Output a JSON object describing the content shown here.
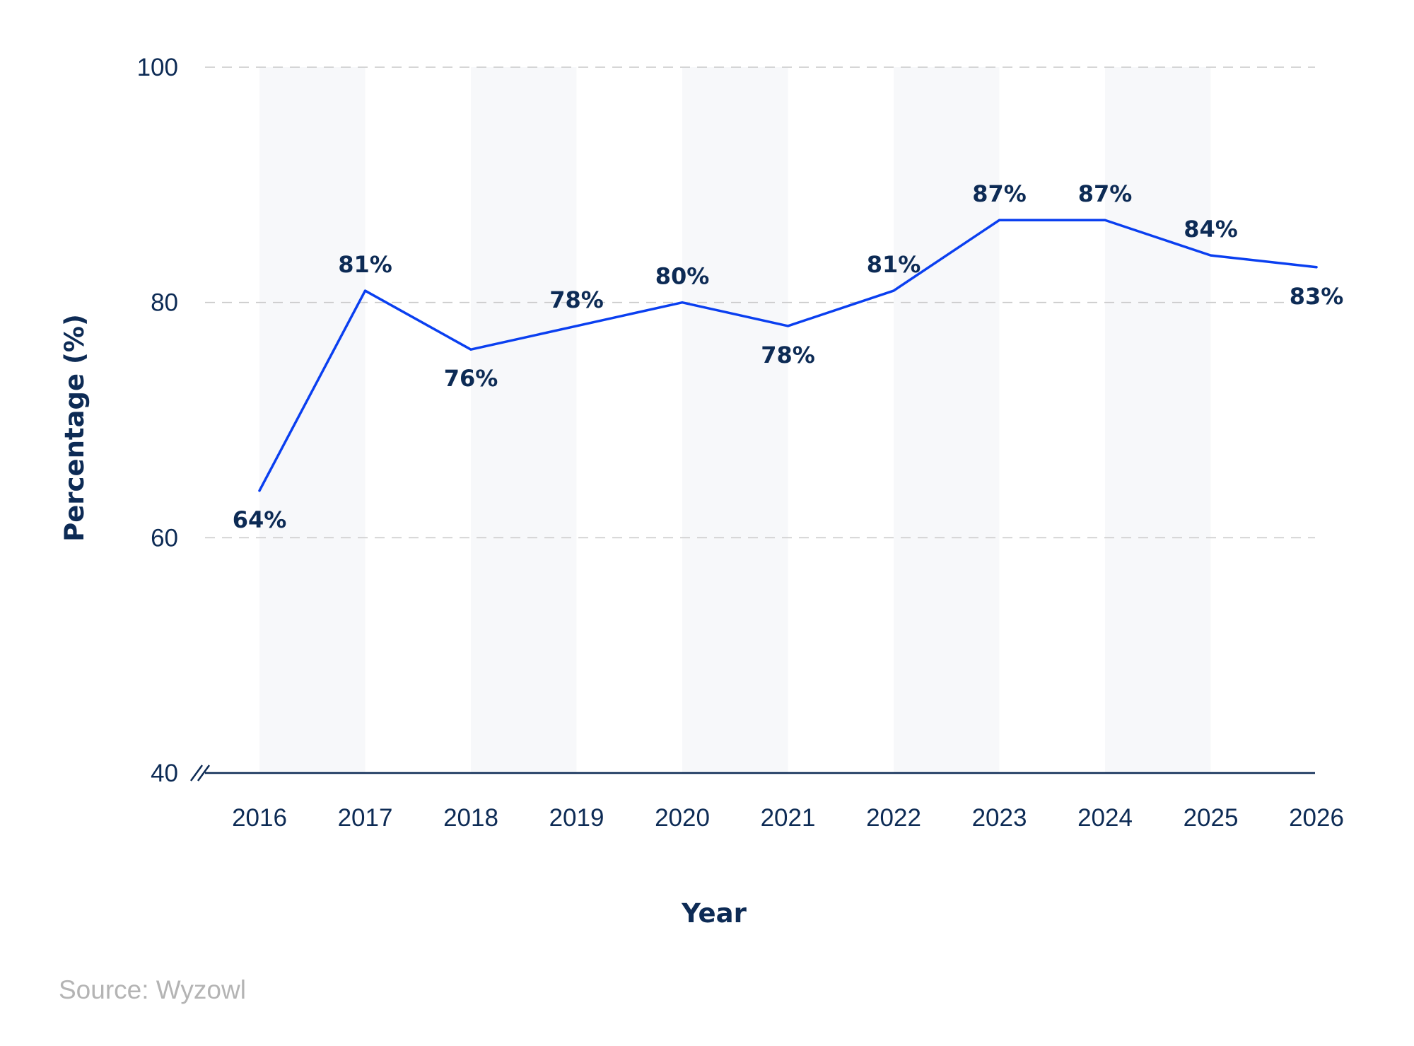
{
  "chart_data": {
    "type": "line",
    "x": [
      "2016",
      "2017",
      "2018",
      "2019",
      "2020",
      "2021",
      "2022",
      "2023",
      "2024",
      "2025",
      "2026"
    ],
    "series": [
      {
        "values": [
          64,
          81,
          76,
          78,
          80,
          78,
          81,
          87,
          87,
          84,
          83
        ]
      }
    ],
    "data_labels": [
      "64%",
      "81%",
      "76%",
      "78%",
      "80%",
      "78%",
      "81%",
      "87%",
      "87%",
      "84%",
      "83%"
    ],
    "xlabel": "Year",
    "ylabel": "Percentage (%)",
    "ylim": [
      40,
      100
    ],
    "yticks": [
      40,
      60,
      80,
      100
    ],
    "grid": "dashed horizontal",
    "alternating_column_bands": true,
    "axis_break": true,
    "line_color": "#0a3ff0",
    "band_color": "#f7f8fa",
    "text_color": "#0d2b55"
  },
  "source": "Source: Wyzowl"
}
